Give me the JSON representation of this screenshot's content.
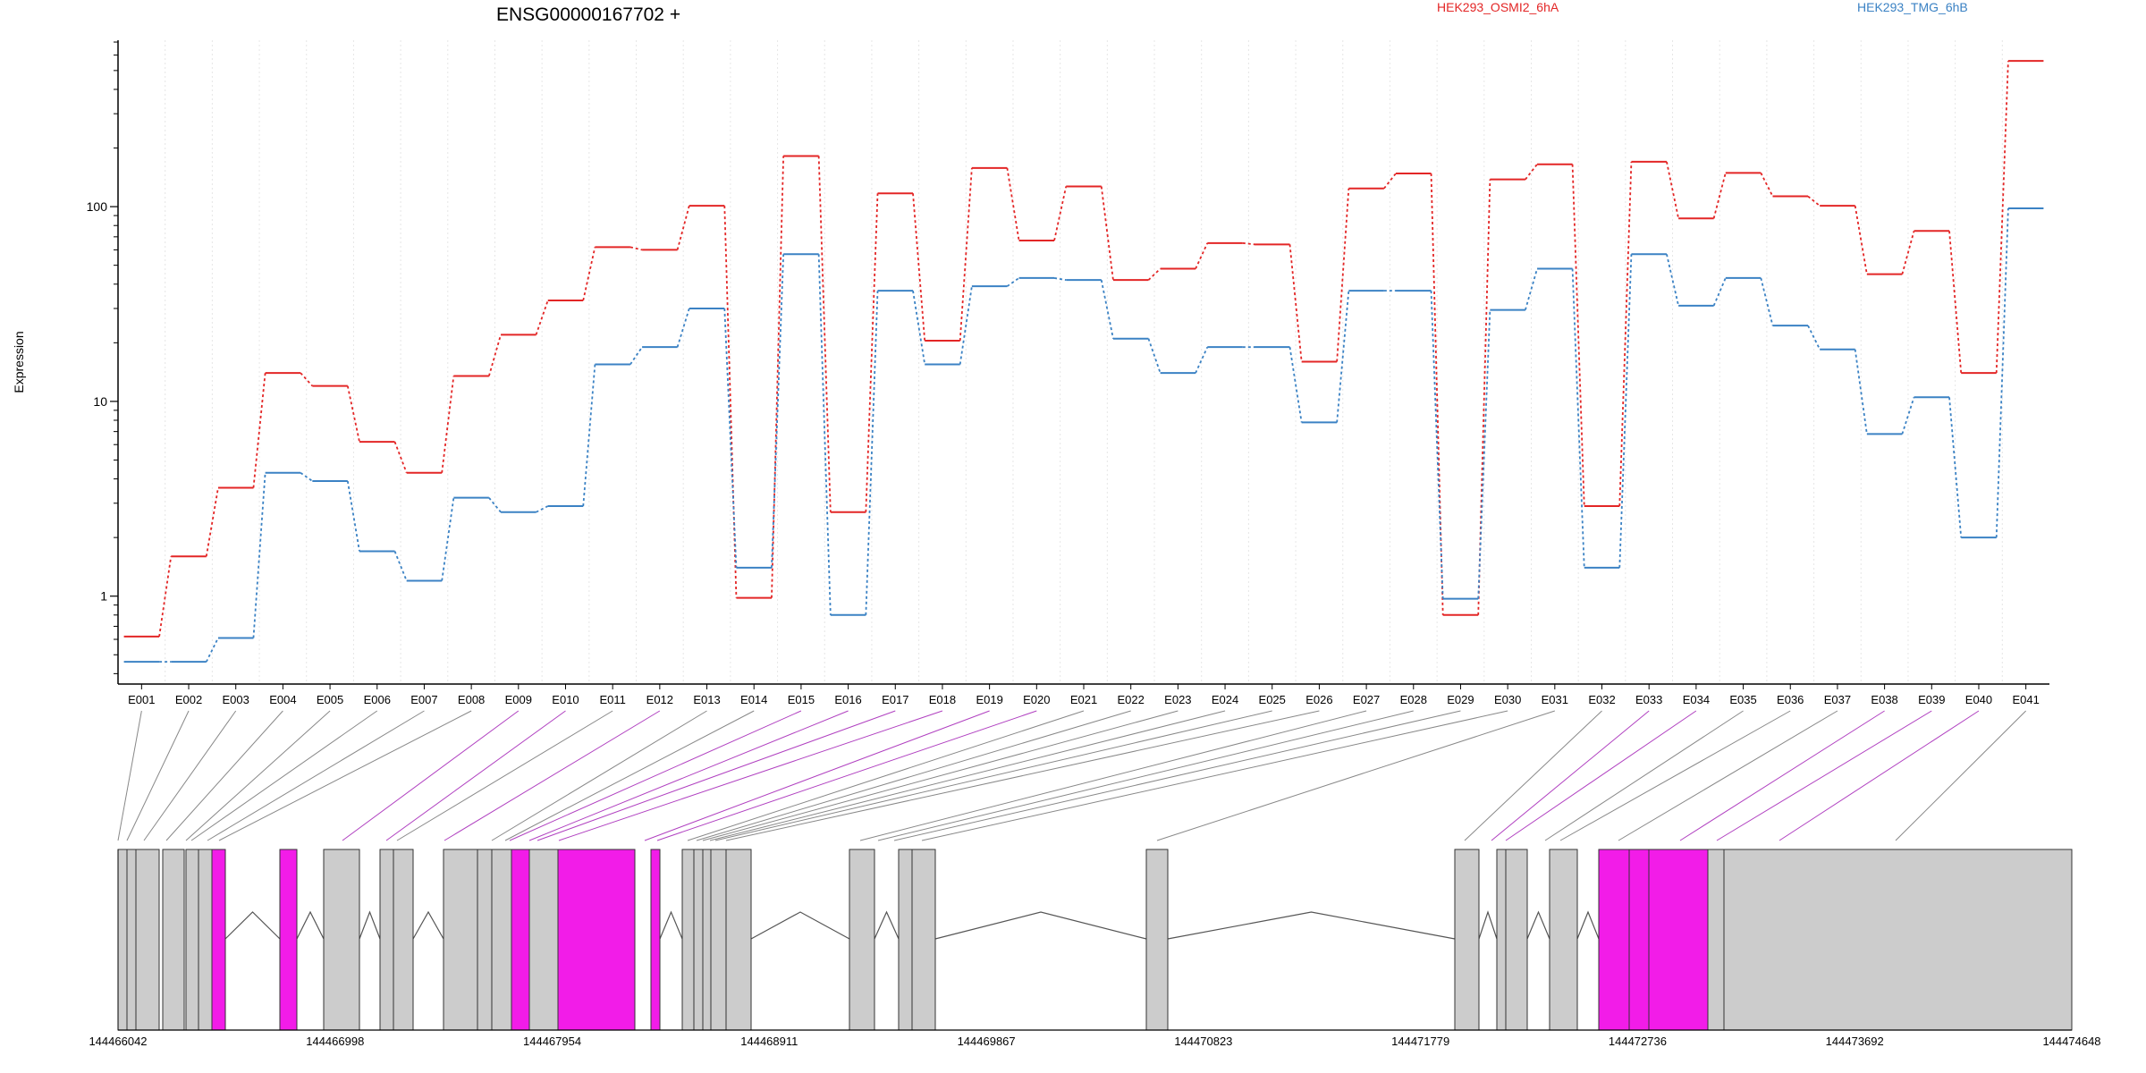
{
  "colors": {
    "series_a": "#e32626",
    "series_b": "#3b82c4",
    "exon": "#cccccc",
    "exon_highlight": "#f21ce8",
    "guide": "#888888",
    "guide_highlight": "#b040c0",
    "axis": "#000000",
    "grid": "#e6e6e6"
  },
  "chart_data": {
    "type": "line",
    "title": "ENSG00000167702 +",
    "ylabel": "Expression",
    "y_scale": "log",
    "ylim": [
      0.4,
      750
    ],
    "y_ticks": [
      {
        "value": 1,
        "label": "1"
      },
      {
        "value": 10,
        "label": "10"
      },
      {
        "value": 100,
        "label": "100"
      }
    ],
    "grid": true,
    "legend_position": "top",
    "categories": [
      "E001",
      "E002",
      "E003",
      "E004",
      "E005",
      "E006",
      "E007",
      "E008",
      "E009",
      "E010",
      "E011",
      "E012",
      "E013",
      "E014",
      "E015",
      "E016",
      "E017",
      "E018",
      "E019",
      "E020",
      "E021",
      "E022",
      "E023",
      "E024",
      "E025",
      "E026",
      "E027",
      "E028",
      "E029",
      "E030",
      "E031",
      "E032",
      "E033",
      "E034",
      "E035",
      "E036",
      "E037",
      "E038",
      "E039",
      "E040",
      "E041"
    ],
    "series": [
      {
        "name": "HEK293_OSMI2_6hA",
        "color": "#e32626",
        "values": [
          0.62,
          1.6,
          3.6,
          14,
          12,
          6.2,
          4.3,
          13.5,
          22,
          33,
          62,
          60,
          101,
          0.98,
          182,
          2.7,
          117,
          20.5,
          158,
          67,
          127,
          42,
          48,
          65,
          64,
          16,
          124,
          148,
          0.8,
          138,
          165,
          2.9,
          170,
          87,
          149,
          113,
          101,
          45,
          75,
          14,
          560
        ]
      },
      {
        "name": "HEK293_TMG_6hB",
        "color": "#3b82c4",
        "values": [
          0.46,
          0.46,
          0.61,
          4.3,
          3.9,
          1.7,
          1.2,
          3.2,
          2.7,
          2.9,
          15.5,
          19,
          30,
          1.4,
          57,
          0.8,
          37,
          15.5,
          39,
          43,
          42,
          21,
          14,
          19,
          19,
          7.8,
          37,
          37,
          0.97,
          29.5,
          48,
          1.4,
          57,
          31,
          43,
          24.5,
          18.5,
          6.8,
          10.5,
          2,
          98
        ]
      }
    ],
    "gene_model": {
      "start_label": "144466042",
      "end_label": "144474648",
      "coordinate_ticks": [
        "144466042",
        "144466998",
        "144467954",
        "144468911",
        "144469867",
        "144470823",
        "144471779",
        "144472736",
        "144473692",
        "144474648"
      ]
    }
  }
}
